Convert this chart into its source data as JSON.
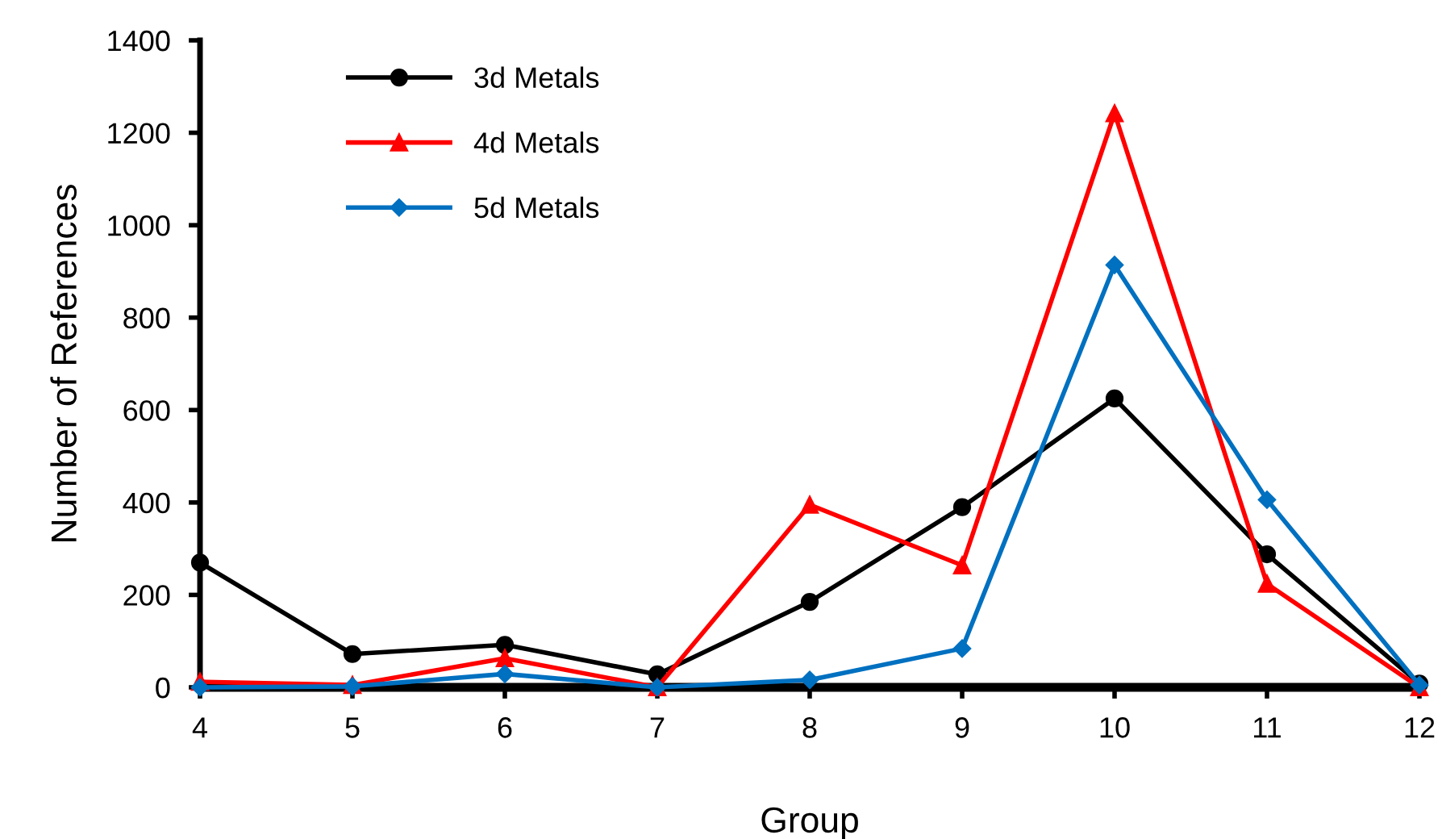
{
  "chart_data": {
    "type": "line",
    "xlabel": "Group",
    "ylabel": "Number of References",
    "x": [
      4,
      5,
      6,
      7,
      8,
      9,
      10,
      11,
      12
    ],
    "xlim": [
      4,
      12
    ],
    "xticks": [
      4,
      5,
      6,
      7,
      8,
      9,
      10,
      11,
      12
    ],
    "ylim": [
      0,
      1400
    ],
    "yticks": [
      0,
      200,
      400,
      600,
      800,
      1000,
      1200,
      1400
    ],
    "grid": false,
    "legend": "top left",
    "line_style": "solid",
    "series": [
      {
        "name": "3d Metals",
        "color": "#000000",
        "marker": "circle",
        "values": [
          270,
          72,
          92,
          28,
          185,
          390,
          625,
          288,
          8
        ]
      },
      {
        "name": "4d Metals",
        "color": "#ff0000",
        "marker": "triangle",
        "values": [
          12,
          5,
          63,
          0,
          395,
          264,
          1242,
          224,
          0
        ]
      },
      {
        "name": "5d Metals",
        "color": "#0070c0",
        "marker": "diamond",
        "values": [
          0,
          2,
          29,
          0,
          16,
          84,
          914,
          406,
          5
        ]
      }
    ]
  }
}
